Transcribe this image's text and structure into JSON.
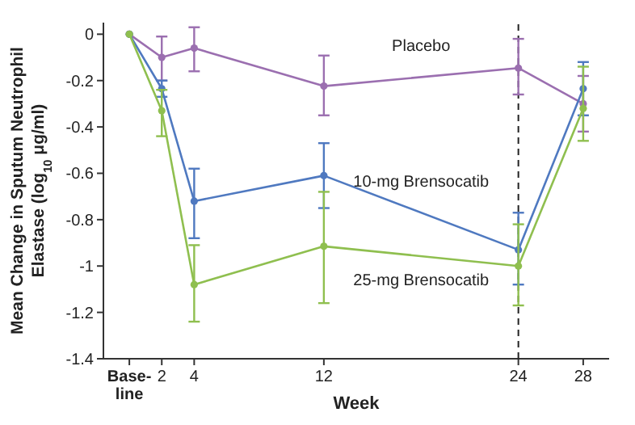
{
  "chart_data": {
    "type": "line",
    "xlabel": "Week",
    "ylabel": "Mean Change in Sputum Neutrophil Elastase (log$_{10}$ μg/ml)",
    "x": [
      0,
      2,
      4,
      12,
      24,
      28
    ],
    "xlim": [
      -1.6,
      29.6
    ],
    "xticks": [
      {
        "value": 0,
        "label": "Base-\nline"
      },
      2,
      4,
      12,
      24,
      28
    ],
    "ylim": [
      -1.4,
      0.05
    ],
    "yticks": [
      0,
      -0.2,
      -0.4,
      -0.6,
      -0.8,
      -1,
      -1.2,
      -1.4
    ],
    "marker": "circle",
    "grid": false,
    "series": [
      {
        "name": "Placebo",
        "color": "#9b6fb0",
        "values": [
          0,
          -0.1,
          -0.06,
          -0.224,
          -0.146,
          -0.3
        ],
        "errors": [
          null,
          [
            -0.2,
            -0.01
          ],
          [
            -0.16,
            0.03
          ],
          [
            -0.35,
            -0.092
          ],
          [
            -0.26,
            -0.02
          ],
          [
            -0.42,
            -0.18
          ]
        ]
      },
      {
        "name": "10-mg Brensocatib",
        "color": "#4f79c0",
        "values": [
          0,
          -0.235,
          -0.72,
          -0.61,
          -0.93,
          -0.235
        ],
        "errors": [
          null,
          [
            -0.27,
            -0.2
          ],
          [
            -0.88,
            -0.58
          ],
          [
            -0.75,
            -0.47
          ],
          [
            -1.08,
            -0.77
          ],
          [
            -0.35,
            -0.12
          ]
        ]
      },
      {
        "name": "25-mg Brensocatib",
        "color": "#8fbf4f",
        "values": [
          0,
          -0.33,
          -1.08,
          -0.915,
          -1.0,
          -0.32
        ],
        "errors": [
          null,
          [
            -0.44,
            -0.24
          ],
          [
            -1.24,
            -0.91
          ],
          [
            -1.16,
            -0.68
          ],
          [
            -1.17,
            -0.82
          ],
          [
            -0.46,
            -0.14
          ]
        ]
      }
    ],
    "ref_lines": [
      {
        "axis": "x",
        "value": 24,
        "color": "#222222",
        "line_style": "dashed"
      }
    ]
  }
}
